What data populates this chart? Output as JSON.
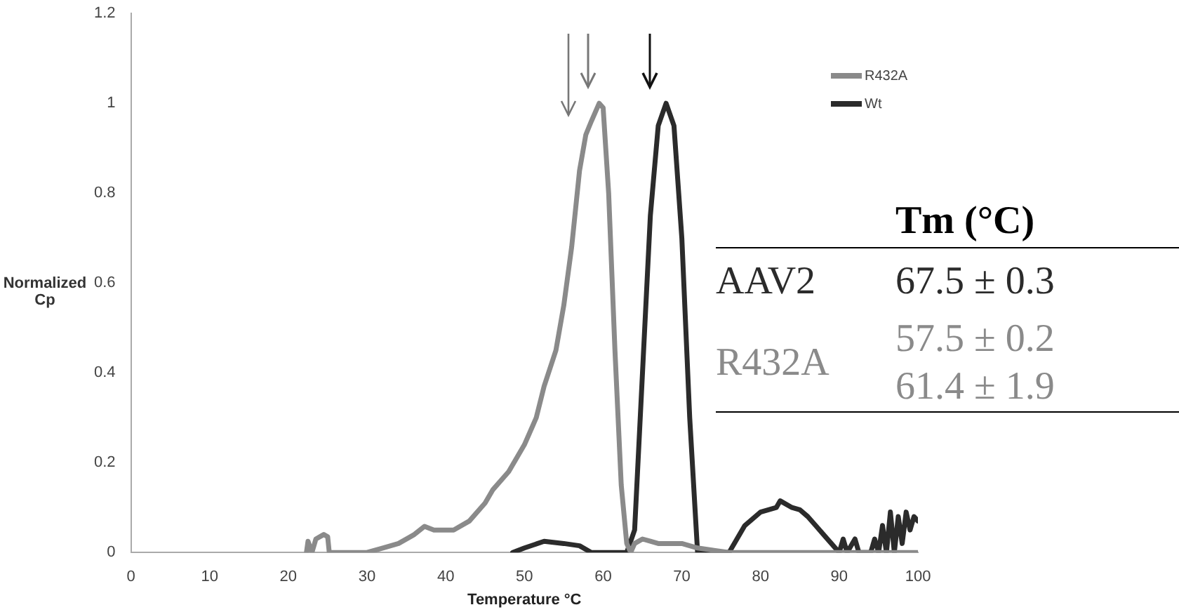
{
  "chart_data": {
    "type": "line",
    "xlabel": "Temperature °C",
    "ylabel": "Normalized Cp",
    "xlim": [
      0,
      100
    ],
    "xticks": [
      0,
      10,
      20,
      30,
      40,
      50,
      60,
      70,
      80,
      90,
      100
    ],
    "ylim": [
      0,
      1.2
    ],
    "yticks": [
      0,
      0.2,
      0.4,
      0.6,
      0.8,
      1,
      1.2
    ],
    "grid": false,
    "legend": "top right",
    "marker": "none",
    "line_style": "solid",
    "series": [
      {
        "name": "R432A",
        "color": "#8a8a8a",
        "x": [
          22.3,
          22.5,
          23,
          23.5,
          24.5,
          25,
          25.2,
          30,
          32,
          34,
          36,
          37.3,
          38.5,
          41,
          43,
          45,
          46,
          48,
          50,
          51.5,
          52.5,
          54,
          55,
          56,
          57,
          57.8,
          58.5,
          59.5,
          60,
          60.7,
          61.5,
          62.3,
          63,
          63.5,
          64,
          65,
          66,
          67,
          70,
          72,
          76,
          100
        ],
        "values": [
          0,
          0.025,
          0,
          0.03,
          0.04,
          0.035,
          0,
          0,
          0.01,
          0.02,
          0.04,
          0.058,
          0.05,
          0.05,
          0.07,
          0.11,
          0.14,
          0.18,
          0.24,
          0.3,
          0.37,
          0.45,
          0.55,
          0.68,
          0.85,
          0.93,
          0.96,
          1.0,
          0.99,
          0.8,
          0.45,
          0.15,
          0.02,
          0,
          0.02,
          0.03,
          0.025,
          0.02,
          0.02,
          0.01,
          0,
          0
        ]
      },
      {
        "name": "Wt",
        "color": "#2b2b2b",
        "x": [
          48.5,
          50,
          52.5,
          55,
          57,
          58.5,
          63,
          64,
          65,
          66,
          67,
          68,
          69,
          70,
          71,
          72,
          76,
          77,
          78,
          80,
          82,
          82.5,
          84,
          85,
          86,
          87,
          88,
          89,
          90,
          90.5,
          91,
          92,
          92.5,
          94,
          94.5,
          95,
          95.5,
          96,
          96.5,
          97,
          97.5,
          98,
          98.5,
          99,
          99.5,
          100
        ],
        "values": [
          0,
          0.01,
          0.025,
          0.02,
          0.015,
          0,
          0,
          0.05,
          0.4,
          0.75,
          0.95,
          1.0,
          0.95,
          0.7,
          0.3,
          0,
          0,
          0.03,
          0.06,
          0.09,
          0.1,
          0.115,
          0.1,
          0.095,
          0.08,
          0.06,
          0.04,
          0.02,
          0,
          0.03,
          0,
          0.03,
          0,
          0,
          0.03,
          0,
          0.06,
          0,
          0.09,
          0,
          0.08,
          0.02,
          0.09,
          0.05,
          0.08,
          0.07
        ]
      }
    ],
    "annotations": [
      "Tm (°C)",
      "AAV2",
      "67.5 ± 0.3",
      "R432A",
      "57.5 ± 0.2",
      "61.4 ± 1.9"
    ]
  }
}
